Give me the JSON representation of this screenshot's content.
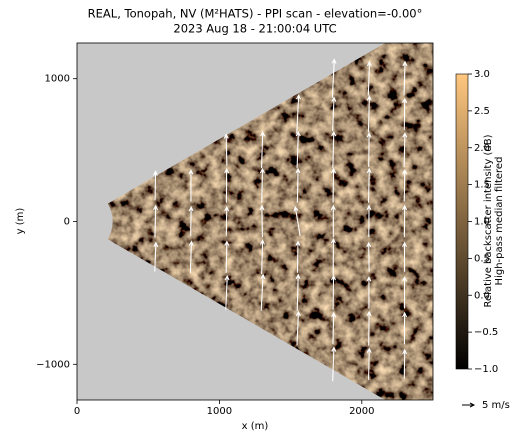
{
  "chart_data": {
    "type": "quiver",
    "title": "REAL, Tonopah, NV (M²HATS) - PPI scan - elevation=-0.00°",
    "subtitle": "2023 Aug 18 - 21:00:04 UTC",
    "xlabel": "x (m)",
    "ylabel": "y (m)",
    "xlim": [
      0,
      2500
    ],
    "ylim": [
      -1250,
      1250
    ],
    "xticks": [
      0,
      1000,
      2000
    ],
    "yticks": [
      {
        "value": -1000,
        "label": "−1000"
      },
      0,
      1000
    ],
    "background": "#c8c8c8",
    "colorbar": {
      "label": "Relative backscatter intensity (dB)",
      "sublabel": "High-pass median filtered",
      "lim": [
        -1,
        3
      ],
      "ticks": [
        {
          "value": -1,
          "label": "−1.0"
        },
        {
          "value": -0.5,
          "label": "−0.5"
        },
        {
          "value": 0,
          "label": "0.0"
        },
        {
          "value": 0.5,
          "label": "0.5"
        },
        {
          "value": 1,
          "label": "1.0"
        },
        {
          "value": 1.5,
          "label": "1.5"
        },
        {
          "value": 2,
          "label": "2.0"
        },
        {
          "value": 2.5,
          "label": "2.5"
        },
        {
          "value": 3,
          "label": "3.0"
        }
      ],
      "colors": [
        "#000000",
        "#ffc77f"
      ]
    },
    "arrows": {
      "color": "#ffffff",
      "x": [
        550,
        550,
        550,
        800,
        800,
        800,
        1050,
        1050,
        1050,
        1050,
        1050,
        1300,
        1300,
        1300,
        1300,
        1300,
        1550,
        1550,
        1550,
        1550,
        1550,
        1550,
        1550,
        1800,
        1800,
        1800,
        1800,
        1800,
        1800,
        1800,
        1800,
        1800,
        2050,
        2050,
        2050,
        2050,
        2050,
        2050,
        2050,
        2050,
        2050,
        2300,
        2300,
        2300,
        2300,
        2300,
        2300,
        2300,
        2300,
        2300
      ],
      "y": [
        -250,
        0,
        250,
        -250,
        0,
        250,
        -500,
        -250,
        0,
        250,
        500,
        -500,
        -250,
        0,
        250,
        500,
        -750,
        -500,
        -250,
        0,
        250,
        500,
        750,
        -1000,
        -750,
        -500,
        -250,
        0,
        250,
        500,
        750,
        1000,
        -1000,
        -750,
        -500,
        -250,
        0,
        250,
        500,
        750,
        1000,
        -1000,
        -750,
        -500,
        -250,
        0,
        250,
        500,
        750,
        1000
      ],
      "u": [
        0.5,
        0.3,
        0.2,
        0.4,
        0.2,
        0,
        0.6,
        0.3,
        0.2,
        0.1,
        -0.3,
        0.8,
        0.4,
        -0.2,
        0.3,
        0.5,
        0.6,
        0.4,
        0.2,
        -2,
        0.3,
        0.5,
        0.8,
        0.5,
        0.3,
        0.2,
        0.1,
        0,
        0.2,
        0.4,
        0.6,
        0.8,
        0.3,
        0.2,
        0,
        -0.2,
        0.1,
        0.3,
        0.2,
        0.4,
        0.5,
        0.2,
        0.1,
        0,
        0,
        0.1,
        0.2,
        0.3,
        0.2,
        0.4
      ],
      "v": [
        12,
        13,
        12,
        13,
        12,
        13,
        14,
        13,
        12,
        14,
        13,
        15,
        14,
        13,
        14,
        15,
        14,
        15,
        13,
        12,
        14,
        15,
        16,
        14,
        13,
        14,
        15,
        13,
        14,
        15,
        14,
        16,
        13,
        14,
        13,
        12,
        13,
        14,
        14,
        15,
        14,
        12,
        13,
        13,
        12,
        13,
        13,
        14,
        13,
        14
      ]
    },
    "quiver_key": {
      "value": 5,
      "label": "5 m/s"
    }
  }
}
